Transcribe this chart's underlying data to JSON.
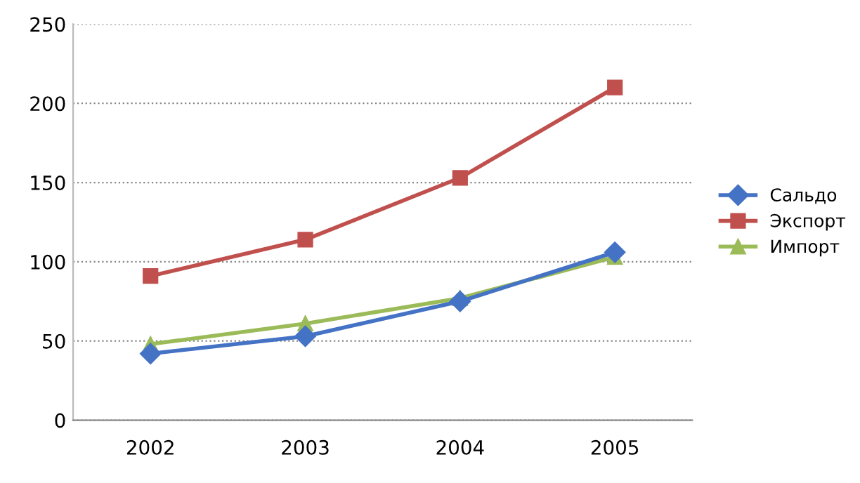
{
  "chart_data": {
    "type": "line",
    "categories": [
      "2002",
      "2003",
      "2004",
      "2005"
    ],
    "series": [
      {
        "name": "Сальдо",
        "color": "#4472c4",
        "marker": "diamond",
        "values": [
          42,
          53,
          75,
          106
        ]
      },
      {
        "name": "Экспорт",
        "color": "#c0504d",
        "marker": "square",
        "values": [
          91,
          114,
          153,
          210
        ]
      },
      {
        "name": "Импорт",
        "color": "#9bbb59",
        "marker": "triangle",
        "values": [
          48,
          61,
          77,
          103
        ]
      }
    ],
    "ylim": [
      0,
      250
    ],
    "yticks": [
      0,
      50,
      100,
      150,
      200,
      250
    ],
    "grid": "y",
    "legend": "right",
    "line_style": "solid"
  }
}
